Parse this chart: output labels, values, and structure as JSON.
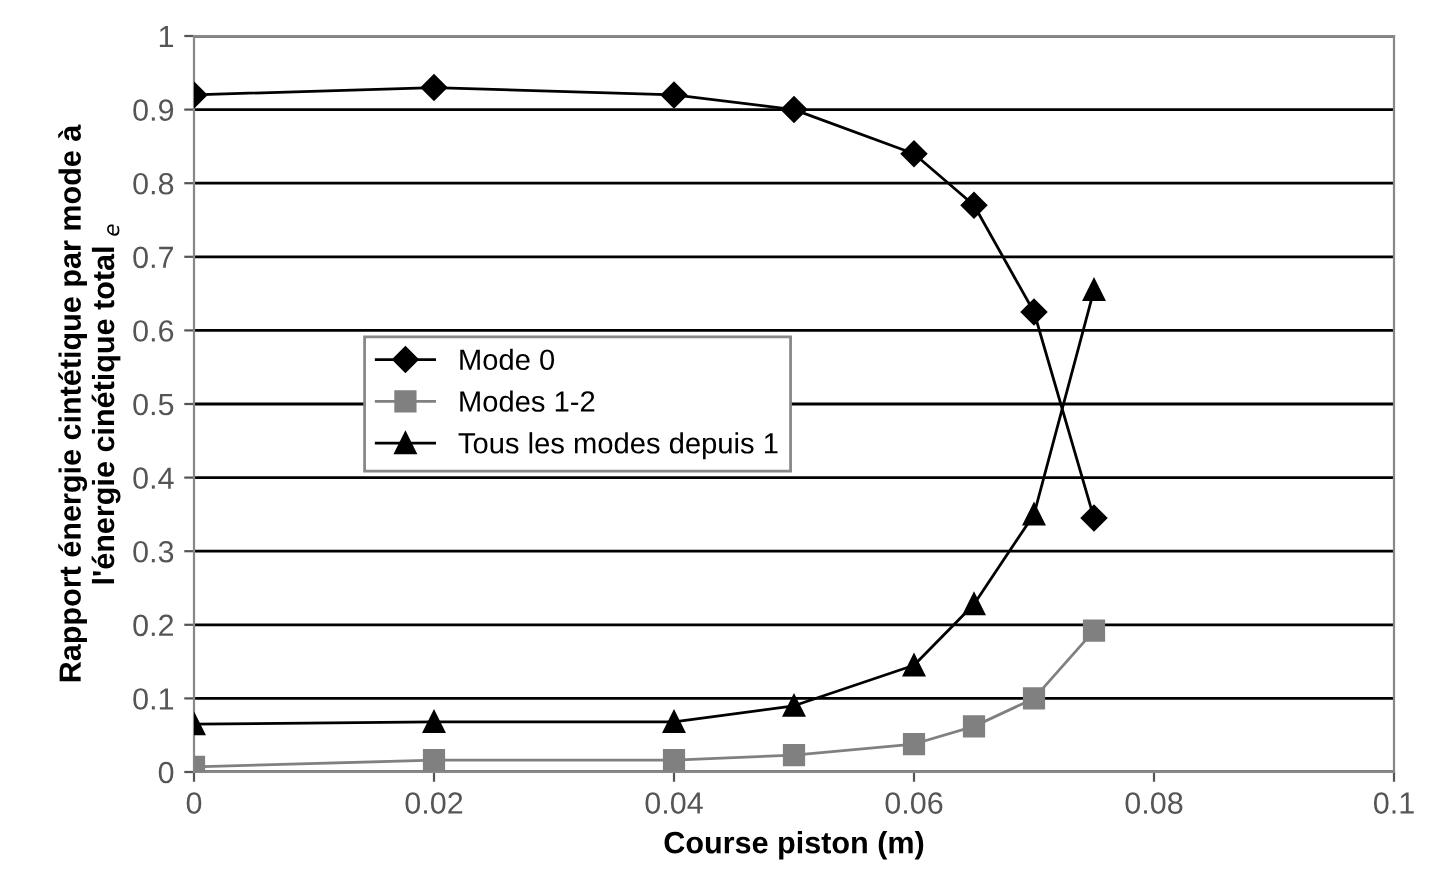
{
  "chart_data": {
    "type": "line",
    "xlabel": "Course piston (m)",
    "ylabel": "Rapport énergie cintétique par mode à\nl'énergie cinétique total $_{e}$",
    "x": [
      0,
      0.02,
      0.04,
      0.05,
      0.06,
      0.065,
      0.07,
      0.075
    ],
    "series": [
      {
        "name": "Mode 0",
        "color": "#000000",
        "marker": "diamond",
        "values": [
          0.92,
          0.93,
          0.92,
          0.9,
          0.84,
          0.77,
          0.625,
          0.345
        ]
      },
      {
        "name": "Modes 1-2",
        "color": "#808080",
        "marker": "square",
        "values": [
          0.007,
          0.016,
          0.016,
          0.023,
          0.038,
          0.062,
          0.1,
          0.192
        ]
      },
      {
        "name": "Tous les modes depuis 1",
        "color": "#000000",
        "marker": "triangle",
        "values": [
          0.065,
          0.068,
          0.068,
          0.09,
          0.145,
          0.228,
          0.35,
          0.655
        ]
      }
    ],
    "xlim": [
      0,
      0.1
    ],
    "xticks": [
      0,
      0.02,
      0.04,
      0.06,
      0.08,
      0.1
    ],
    "ylim": [
      0,
      1
    ],
    "yticks": [
      0,
      0.1,
      0.2,
      0.3,
      0.4,
      0.5,
      0.6,
      0.7,
      0.8,
      0.9,
      1
    ],
    "grid": "y",
    "legend": "center left"
  }
}
